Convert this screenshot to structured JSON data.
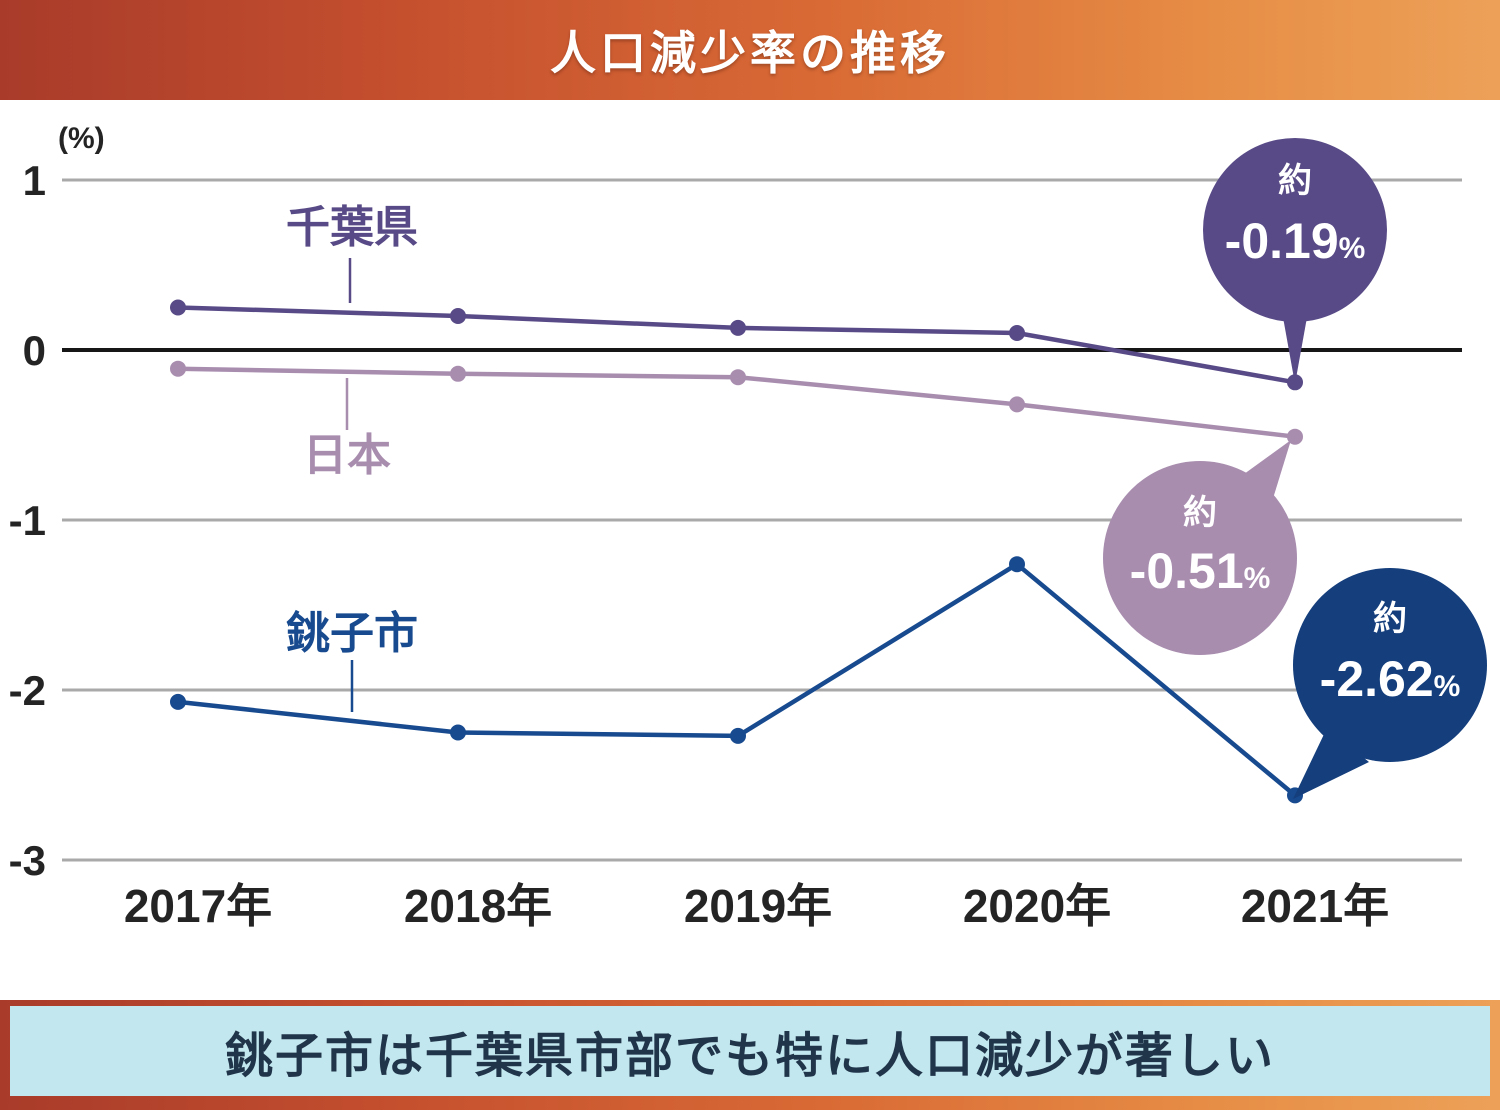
{
  "header": {
    "title": "人口減少率の推移"
  },
  "chart_data": {
    "type": "line",
    "title": "人口減少率の推移",
    "unit_label": "(%)",
    "categories": [
      "2017年",
      "2018年",
      "2019年",
      "2020年",
      "2021年"
    ],
    "yticks": [
      1,
      0,
      -1,
      -2,
      -3
    ],
    "ylim": [
      -3,
      1
    ],
    "grid": true,
    "zero_line_color": "#161616",
    "grid_color": "#a9a9a9",
    "series": [
      {
        "name": "千葉県",
        "color": "#584a86",
        "values": [
          0.25,
          0.2,
          0.13,
          0.1,
          -0.19
        ]
      },
      {
        "name": "日本",
        "color": "#a88daf",
        "values": [
          -0.11,
          -0.14,
          -0.16,
          -0.32,
          -0.51
        ]
      },
      {
        "name": "銚子市",
        "color": "#174a8f",
        "values": [
          -2.07,
          -2.25,
          -2.27,
          -1.26,
          -2.62
        ]
      }
    ],
    "callouts": [
      {
        "prefix": "約",
        "value": "-0.19",
        "suffix": "%",
        "color": "#584a86"
      },
      {
        "prefix": "約",
        "value": "-0.51",
        "suffix": "%",
        "color": "#a88daf"
      },
      {
        "prefix": "約",
        "value": "-2.62",
        "suffix": "%",
        "color": "#143e7c"
      }
    ]
  },
  "footer": {
    "text": "銚子市は千葉県市部でも特に人口減少が著しい"
  }
}
